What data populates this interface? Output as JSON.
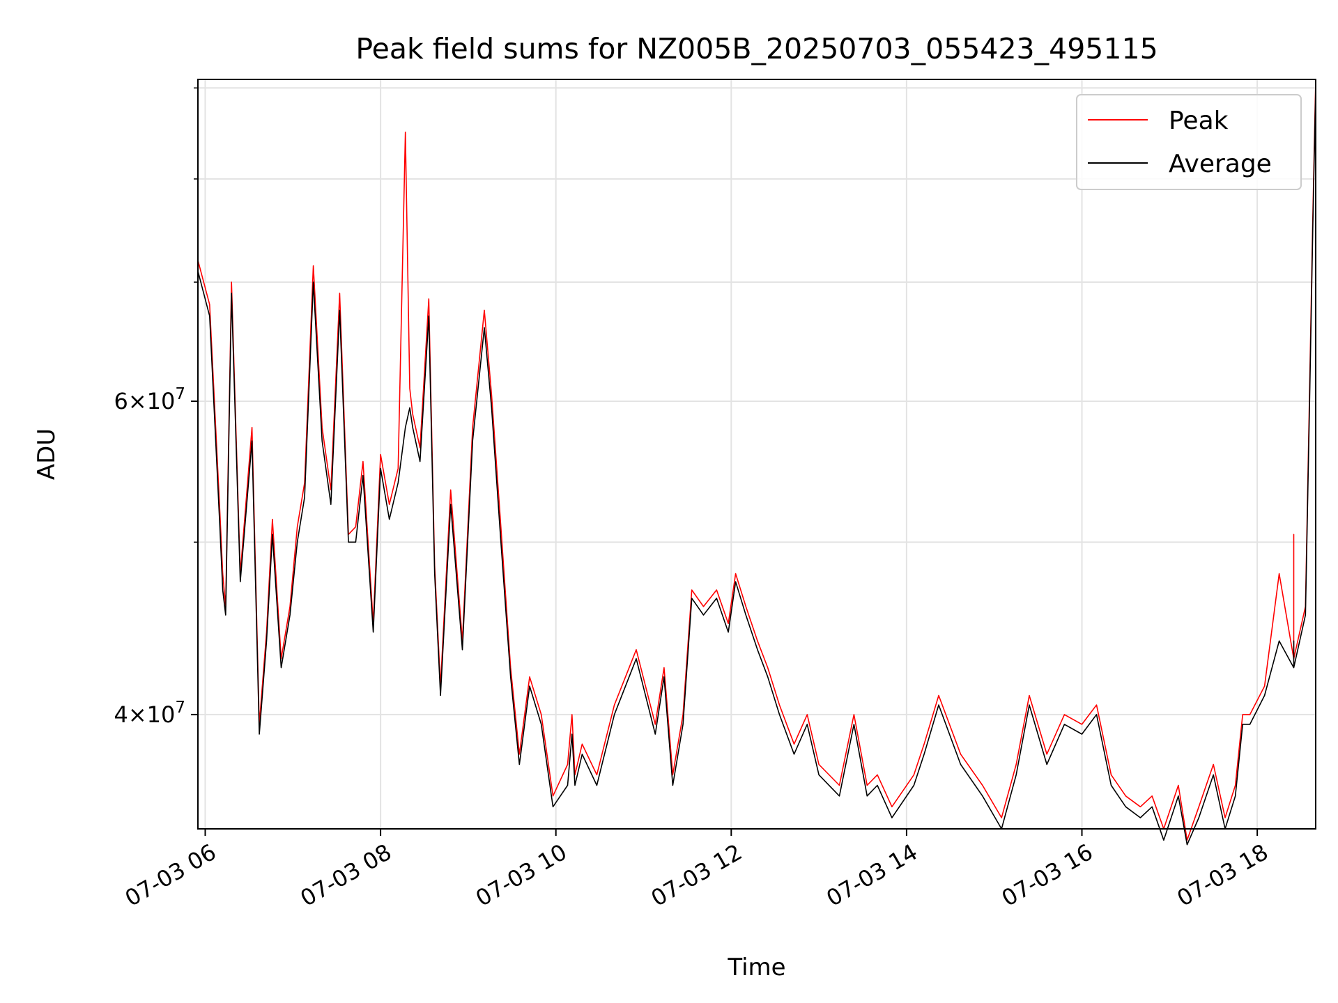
{
  "chart_data": {
    "type": "line",
    "title": "Peak field sums for NZ005B_20250703_055423_495115",
    "xlabel": "Time",
    "ylabel": "ADU",
    "xlim": [
      "07-03 05:55",
      "07-03 18:40"
    ],
    "ylim": [
      34500000,
      91000000
    ],
    "yscale": "log",
    "grid": true,
    "legend_position": "top-right",
    "x_ticks": [
      "07-03 06",
      "07-03 08",
      "07-03 10",
      "07-03 12",
      "07-03 14",
      "07-03 16",
      "07-03 18"
    ],
    "y_ticks_major": [
      {
        "value": 40000000,
        "label_mant": "4",
        "label_exp": "7"
      },
      {
        "value": 60000000,
        "label_mant": "6",
        "label_exp": "7"
      }
    ],
    "y_ticks_minor": [
      50000000,
      70000000,
      80000000,
      90000000
    ],
    "series": [
      {
        "name": "Peak",
        "color": "#ff0000",
        "x": [
          "07-03 05:55",
          "07-03 06:03",
          "07-03 06:10",
          "07-03 06:12",
          "07-03 06:14",
          "07-03 06:18",
          "07-03 06:24",
          "07-03 06:32",
          "07-03 06:37",
          "07-03 06:42",
          "07-03 06:46",
          "07-03 06:52",
          "07-03 06:58",
          "07-03 07:03",
          "07-03 07:08",
          "07-03 07:14",
          "07-03 07:20",
          "07-03 07:26",
          "07-03 07:32",
          "07-03 07:38",
          "07-03 07:43",
          "07-03 07:48",
          "07-03 07:55",
          "07-03 08:00",
          "07-03 08:06",
          "07-03 08:12",
          "07-03 08:17",
          "07-03 08:20",
          "07-03 08:22",
          "07-03 08:27",
          "07-03 08:33",
          "07-03 08:37",
          "07-03 08:41",
          "07-03 08:48",
          "07-03 08:56",
          "07-03 09:03",
          "07-03 09:11",
          "07-03 09:16",
          "07-03 09:22",
          "07-03 09:29",
          "07-03 09:35",
          "07-03 09:42",
          "07-03 09:50",
          "07-03 09:58",
          "07-03 10:08",
          "07-03 10:11",
          "07-03 10:13",
          "07-03 10:18",
          "07-03 10:28",
          "07-03 10:40",
          "07-03 10:55",
          "07-03 11:08",
          "07-03 11:14",
          "07-03 11:20",
          "07-03 11:27",
          "07-03 11:33",
          "07-03 11:41",
          "07-03 11:50",
          "07-03 11:58",
          "07-03 12:03",
          "07-03 12:10",
          "07-03 12:18",
          "07-03 12:25",
          "07-03 12:33",
          "07-03 12:43",
          "07-03 12:52",
          "07-03 13:00",
          "07-03 13:14",
          "07-03 13:24",
          "07-03 13:33",
          "07-03 13:40",
          "07-03 13:50",
          "07-03 14:05",
          "07-03 14:12",
          "07-03 14:22",
          "07-03 14:37",
          "07-03 14:52",
          "07-03 15:05",
          "07-03 15:15",
          "07-03 15:24",
          "07-03 15:36",
          "07-03 15:48",
          "07-03 16:00",
          "07-03 16:10",
          "07-03 16:20",
          "07-03 16:30",
          "07-03 16:40",
          "07-03 16:48",
          "07-03 16:56",
          "07-03 17:06",
          "07-03 17:12",
          "07-03 17:20",
          "07-03 17:30",
          "07-03 17:38",
          "07-03 17:45",
          "07-03 17:50",
          "07-03 17:55",
          "07-03 18:05",
          "07-03 18:15",
          "07-03 18:25",
          "07-03 18:25",
          "07-03 18:25",
          "07-03 18:33",
          "07-03 18:36",
          "07-03 18:38",
          "07-03 18:40"
        ],
        "y": [
          72000000,
          68000000,
          52000000,
          48000000,
          46000000,
          70000000,
          48000000,
          58000000,
          39500000,
          44500000,
          51500000,
          43000000,
          46000000,
          51000000,
          54000000,
          71500000,
          58000000,
          53500000,
          69000000,
          50500000,
          51000000,
          55500000,
          45000000,
          56000000,
          52500000,
          55000000,
          85000000,
          61000000,
          59000000,
          56500000,
          68500000,
          48500000,
          41500000,
          53500000,
          44000000,
          58000000,
          67500000,
          60500000,
          51500000,
          42500000,
          38000000,
          42000000,
          40000000,
          36000000,
          37500000,
          40000000,
          37000000,
          38500000,
          37000000,
          40500000,
          43500000,
          39500000,
          42500000,
          37000000,
          40000000,
          47000000,
          46000000,
          47000000,
          45000000,
          48000000,
          46000000,
          44000000,
          42500000,
          40500000,
          38500000,
          40000000,
          37500000,
          36500000,
          40000000,
          36500000,
          37000000,
          35500000,
          37000000,
          38500000,
          41000000,
          38000000,
          36500000,
          35000000,
          37500000,
          41000000,
          38000000,
          40000000,
          39500000,
          40500000,
          37000000,
          36000000,
          35500000,
          36000000,
          34500000,
          36500000,
          34000000,
          35500000,
          37500000,
          35000000,
          36500000,
          40000000,
          40000000,
          41500000,
          48000000,
          43000000,
          50500000,
          43000000,
          46000000,
          62000000,
          76000000,
          91000000
        ]
      },
      {
        "name": "Average",
        "color": "#000000",
        "x": [
          "07-03 05:55",
          "07-03 06:03",
          "07-03 06:10",
          "07-03 06:12",
          "07-03 06:14",
          "07-03 06:18",
          "07-03 06:24",
          "07-03 06:32",
          "07-03 06:37",
          "07-03 06:42",
          "07-03 06:46",
          "07-03 06:52",
          "07-03 06:58",
          "07-03 07:03",
          "07-03 07:08",
          "07-03 07:14",
          "07-03 07:20",
          "07-03 07:26",
          "07-03 07:32",
          "07-03 07:38",
          "07-03 07:43",
          "07-03 07:48",
          "07-03 07:55",
          "07-03 08:00",
          "07-03 08:06",
          "07-03 08:12",
          "07-03 08:17",
          "07-03 08:20",
          "07-03 08:22",
          "07-03 08:27",
          "07-03 08:33",
          "07-03 08:37",
          "07-03 08:41",
          "07-03 08:48",
          "07-03 08:56",
          "07-03 09:03",
          "07-03 09:11",
          "07-03 09:16",
          "07-03 09:22",
          "07-03 09:29",
          "07-03 09:35",
          "07-03 09:42",
          "07-03 09:50",
          "07-03 09:58",
          "07-03 10:08",
          "07-03 10:11",
          "07-03 10:13",
          "07-03 10:18",
          "07-03 10:28",
          "07-03 10:40",
          "07-03 10:55",
          "07-03 11:08",
          "07-03 11:14",
          "07-03 11:20",
          "07-03 11:27",
          "07-03 11:33",
          "07-03 11:41",
          "07-03 11:50",
          "07-03 11:58",
          "07-03 12:03",
          "07-03 12:10",
          "07-03 12:18",
          "07-03 12:25",
          "07-03 12:33",
          "07-03 12:43",
          "07-03 12:52",
          "07-03 13:00",
          "07-03 13:14",
          "07-03 13:24",
          "07-03 13:33",
          "07-03 13:40",
          "07-03 13:50",
          "07-03 14:05",
          "07-03 14:12",
          "07-03 14:22",
          "07-03 14:37",
          "07-03 14:52",
          "07-03 15:05",
          "07-03 15:15",
          "07-03 15:24",
          "07-03 15:36",
          "07-03 15:48",
          "07-03 16:00",
          "07-03 16:10",
          "07-03 16:20",
          "07-03 16:30",
          "07-03 16:40",
          "07-03 16:48",
          "07-03 16:56",
          "07-03 17:06",
          "07-03 17:12",
          "07-03 17:20",
          "07-03 17:30",
          "07-03 17:38",
          "07-03 17:45",
          "07-03 17:50",
          "07-03 17:55",
          "07-03 18:05",
          "07-03 18:15",
          "07-03 18:25",
          "07-03 18:25",
          "07-03 18:25",
          "07-03 18:33",
          "07-03 18:36",
          "07-03 18:38",
          "07-03 18:40"
        ],
        "y": [
          71000000,
          67000000,
          51000000,
          47000000,
          45500000,
          69000000,
          47500000,
          57000000,
          39000000,
          44000000,
          50500000,
          42500000,
          45500000,
          50000000,
          53000000,
          70000000,
          57000000,
          52500000,
          67500000,
          50000000,
          50000000,
          54500000,
          44500000,
          55000000,
          51500000,
          54000000,
          58000000,
          59500000,
          58000000,
          55500000,
          67000000,
          48000000,
          41000000,
          52500000,
          43500000,
          57000000,
          66000000,
          59500000,
          50500000,
          42000000,
          37500000,
          41500000,
          39500000,
          35500000,
          36500000,
          39000000,
          36500000,
          38000000,
          36500000,
          40000000,
          43000000,
          39000000,
          42000000,
          36500000,
          39500000,
          46500000,
          45500000,
          46500000,
          44500000,
          47500000,
          45500000,
          43500000,
          42000000,
          40000000,
          38000000,
          39500000,
          37000000,
          36000000,
          39500000,
          36000000,
          36500000,
          35000000,
          36500000,
          38000000,
          40500000,
          37500000,
          36000000,
          34500000,
          37000000,
          40500000,
          37500000,
          39500000,
          39000000,
          40000000,
          36500000,
          35500000,
          35000000,
          35500000,
          34000000,
          36000000,
          33800000,
          35000000,
          37000000,
          34500000,
          36000000,
          39500000,
          39500000,
          41000000,
          44000000,
          42500000,
          44000000,
          42500000,
          45500000,
          61000000,
          75000000,
          90000000
        ]
      }
    ]
  }
}
